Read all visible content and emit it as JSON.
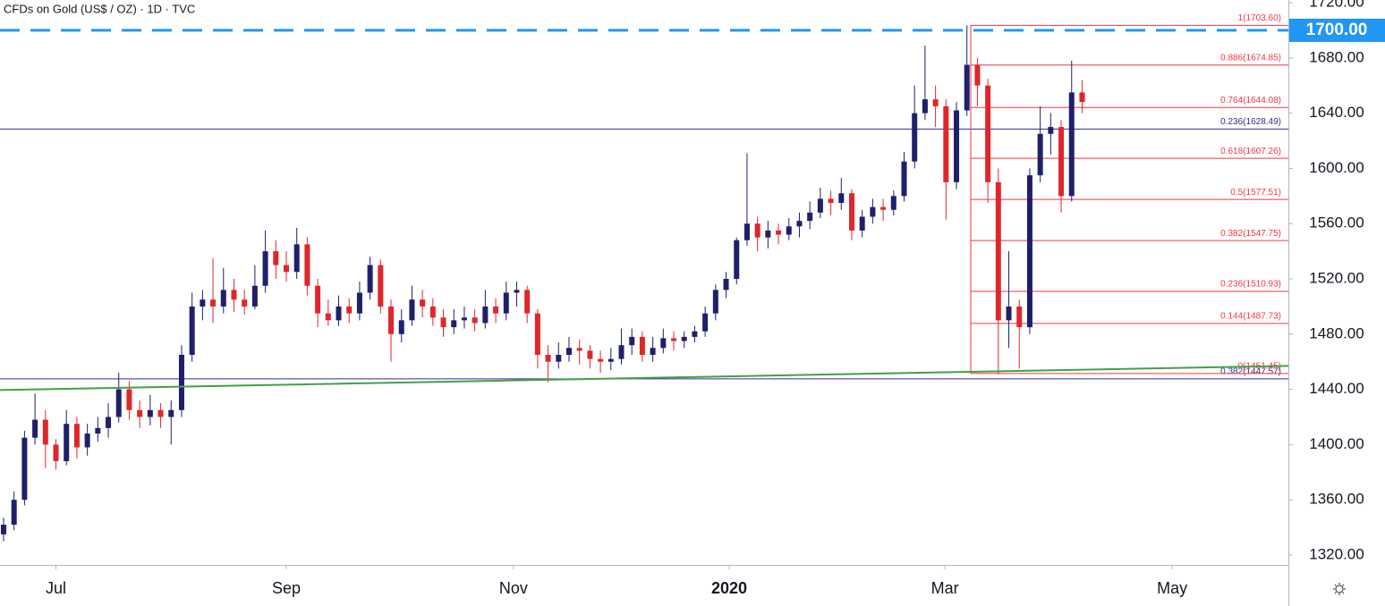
{
  "chart_data": {
    "type": "candlestick",
    "title": "CFDs on Gold (US$ / OZ) · 1D · TVC",
    "up_color": "#1f1f6b",
    "down_color": "#e0262a",
    "ylim": [
      1320,
      1720
    ],
    "yticks": [
      {
        "value": 1320,
        "label": "1320.00"
      },
      {
        "value": 1360,
        "label": "1360.00"
      },
      {
        "value": 1400,
        "label": "1400.00"
      },
      {
        "value": 1440,
        "label": "1440.00"
      },
      {
        "value": 1480,
        "label": "1480.00"
      },
      {
        "value": 1520,
        "label": "1520.00"
      },
      {
        "value": 1560,
        "label": "1560.00"
      },
      {
        "value": 1600,
        "label": "1600.00"
      },
      {
        "value": 1640,
        "label": "1640.00"
      },
      {
        "value": 1680,
        "label": "1680.00"
      },
      {
        "value": 1720,
        "label": "1720.00"
      }
    ],
    "xlim": [
      -0.34,
      122.7
    ],
    "xticks": [
      {
        "value": 5,
        "label": "Jul"
      },
      {
        "value": 27,
        "label": "Sep"
      },
      {
        "value": 48.7,
        "label": "Nov"
      },
      {
        "value": 69.3,
        "label": "2020"
      },
      {
        "value": 89.9,
        "label": "Mar"
      },
      {
        "value": 111.6,
        "label": "May"
      }
    ],
    "price_line": {
      "value": 1700,
      "label": "1700.00",
      "color": "#2196f3"
    },
    "trendline": {
      "color": "#43a047",
      "x": [
        -0.34,
        122.7
      ],
      "y": [
        1439.5,
        1457
      ]
    },
    "fib_levels": {
      "color": "#f23645",
      "levels": [
        {
          "value": 1703.6,
          "label": "1(1703.60)"
        },
        {
          "value": 1674.85,
          "label": "0.886(1674.85)"
        },
        {
          "value": 1644.08,
          "label": "0.764(1644.08)"
        },
        {
          "value": 1607.26,
          "label": "0.618(1607.26)"
        },
        {
          "value": 1577.51,
          "label": "0.5(1577.51)"
        },
        {
          "value": 1547.75,
          "label": "0.382(1547.75)"
        },
        {
          "value": 1510.93,
          "label": "0.236(1510.93)"
        },
        {
          "value": 1487.73,
          "label": "0.144(1487.73)"
        },
        {
          "value": 1451.45,
          "label": "0(1451.45)"
        }
      ]
    },
    "fib_levels_2": {
      "color": "#2e2e8f",
      "levels": [
        {
          "value": 1628.49,
          "label": "0.236(1628.49)"
        },
        {
          "value": 1447.57,
          "label": "0.382(1447.57)"
        }
      ]
    },
    "ohlc": [
      [
        1335,
        1347,
        1330,
        1342
      ],
      [
        1342,
        1366,
        1338,
        1360
      ],
      [
        1360,
        1410,
        1356,
        1405
      ],
      [
        1405,
        1437,
        1400,
        1418
      ],
      [
        1418,
        1425,
        1383,
        1400
      ],
      [
        1400,
        1404,
        1382,
        1388
      ],
      [
        1388,
        1425,
        1385,
        1415
      ],
      [
        1415,
        1420,
        1390,
        1398
      ],
      [
        1398,
        1415,
        1392,
        1408
      ],
      [
        1408,
        1420,
        1402,
        1412
      ],
      [
        1412,
        1430,
        1405,
        1420
      ],
      [
        1420,
        1452,
        1416,
        1440
      ],
      [
        1440,
        1446,
        1418,
        1425
      ],
      [
        1425,
        1432,
        1412,
        1420
      ],
      [
        1420,
        1436,
        1414,
        1425
      ],
      [
        1425,
        1430,
        1412,
        1420
      ],
      [
        1420,
        1432,
        1400,
        1425
      ],
      [
        1425,
        1472,
        1420,
        1465
      ],
      [
        1465,
        1510,
        1460,
        1500
      ],
      [
        1500,
        1512,
        1490,
        1505
      ],
      [
        1505,
        1535,
        1488,
        1500
      ],
      [
        1500,
        1528,
        1495,
        1512
      ],
      [
        1512,
        1520,
        1496,
        1505
      ],
      [
        1505,
        1512,
        1494,
        1500
      ],
      [
        1500,
        1530,
        1498,
        1515
      ],
      [
        1515,
        1555,
        1510,
        1540
      ],
      [
        1540,
        1548,
        1520,
        1530
      ],
      [
        1530,
        1540,
        1518,
        1525
      ],
      [
        1525,
        1557,
        1520,
        1545
      ],
      [
        1545,
        1550,
        1508,
        1515
      ],
      [
        1515,
        1520,
        1485,
        1495
      ],
      [
        1495,
        1505,
        1486,
        1490
      ],
      [
        1490,
        1508,
        1486,
        1500
      ],
      [
        1500,
        1506,
        1488,
        1495
      ],
      [
        1495,
        1518,
        1490,
        1510
      ],
      [
        1510,
        1536,
        1505,
        1530
      ],
      [
        1530,
        1534,
        1495,
        1500
      ],
      [
        1500,
        1505,
        1460,
        1480
      ],
      [
        1480,
        1498,
        1474,
        1490
      ],
      [
        1490,
        1515,
        1486,
        1505
      ],
      [
        1505,
        1512,
        1492,
        1500
      ],
      [
        1500,
        1506,
        1486,
        1492
      ],
      [
        1492,
        1498,
        1478,
        1485
      ],
      [
        1485,
        1498,
        1480,
        1490
      ],
      [
        1490,
        1500,
        1484,
        1492
      ],
      [
        1492,
        1498,
        1482,
        1488
      ],
      [
        1488,
        1512,
        1484,
        1500
      ],
      [
        1500,
        1506,
        1488,
        1495
      ],
      [
        1495,
        1518,
        1490,
        1510
      ],
      [
        1510,
        1518,
        1500,
        1512
      ],
      [
        1512,
        1515,
        1488,
        1495
      ],
      [
        1495,
        1498,
        1455,
        1465
      ],
      [
        1465,
        1472,
        1445,
        1460
      ],
      [
        1460,
        1474,
        1455,
        1465
      ],
      [
        1465,
        1478,
        1460,
        1470
      ],
      [
        1470,
        1476,
        1458,
        1468
      ],
      [
        1468,
        1472,
        1455,
        1462
      ],
      [
        1462,
        1468,
        1452,
        1460
      ],
      [
        1460,
        1470,
        1454,
        1462
      ],
      [
        1462,
        1484,
        1458,
        1472
      ],
      [
        1472,
        1484,
        1465,
        1478
      ],
      [
        1478,
        1482,
        1460,
        1465
      ],
      [
        1465,
        1478,
        1460,
        1470
      ],
      [
        1470,
        1484,
        1466,
        1477
      ],
      [
        1477,
        1482,
        1468,
        1475
      ],
      [
        1475,
        1482,
        1470,
        1478
      ],
      [
        1478,
        1486,
        1474,
        1482
      ],
      [
        1482,
        1500,
        1478,
        1495
      ],
      [
        1495,
        1516,
        1490,
        1512
      ],
      [
        1512,
        1525,
        1506,
        1520
      ],
      [
        1520,
        1550,
        1516,
        1548
      ],
      [
        1548,
        1611,
        1544,
        1560
      ],
      [
        1560,
        1565,
        1540,
        1550
      ],
      [
        1550,
        1562,
        1542,
        1555
      ],
      [
        1555,
        1560,
        1545,
        1552
      ],
      [
        1552,
        1564,
        1548,
        1558
      ],
      [
        1558,
        1568,
        1550,
        1562
      ],
      [
        1562,
        1576,
        1556,
        1568
      ],
      [
        1568,
        1586,
        1564,
        1578
      ],
      [
        1578,
        1584,
        1566,
        1575
      ],
      [
        1575,
        1593,
        1570,
        1582
      ],
      [
        1582,
        1585,
        1548,
        1555
      ],
      [
        1555,
        1570,
        1550,
        1565
      ],
      [
        1565,
        1578,
        1560,
        1572
      ],
      [
        1572,
        1578,
        1562,
        1570
      ],
      [
        1570,
        1584,
        1566,
        1580
      ],
      [
        1580,
        1612,
        1576,
        1605
      ],
      [
        1605,
        1660,
        1600,
        1640
      ],
      [
        1640,
        1689,
        1635,
        1650
      ],
      [
        1650,
        1660,
        1630,
        1645
      ],
      [
        1645,
        1650,
        1563,
        1590
      ],
      [
        1590,
        1648,
        1585,
        1642
      ],
      [
        1642,
        1703.6,
        1638,
        1675
      ],
      [
        1675,
        1680,
        1645,
        1660
      ],
      [
        1660,
        1665,
        1575,
        1590
      ],
      [
        1590,
        1600,
        1451,
        1490
      ],
      [
        1490,
        1540,
        1470,
        1500
      ],
      [
        1500,
        1505,
        1455,
        1485
      ],
      [
        1485,
        1600,
        1480,
        1595
      ],
      [
        1595,
        1645,
        1590,
        1625
      ],
      [
        1625,
        1640,
        1610,
        1630
      ],
      [
        1630,
        1635,
        1568,
        1580
      ],
      [
        1580,
        1678,
        1576,
        1655
      ],
      [
        1655,
        1664,
        1640,
        1648
      ]
    ]
  }
}
